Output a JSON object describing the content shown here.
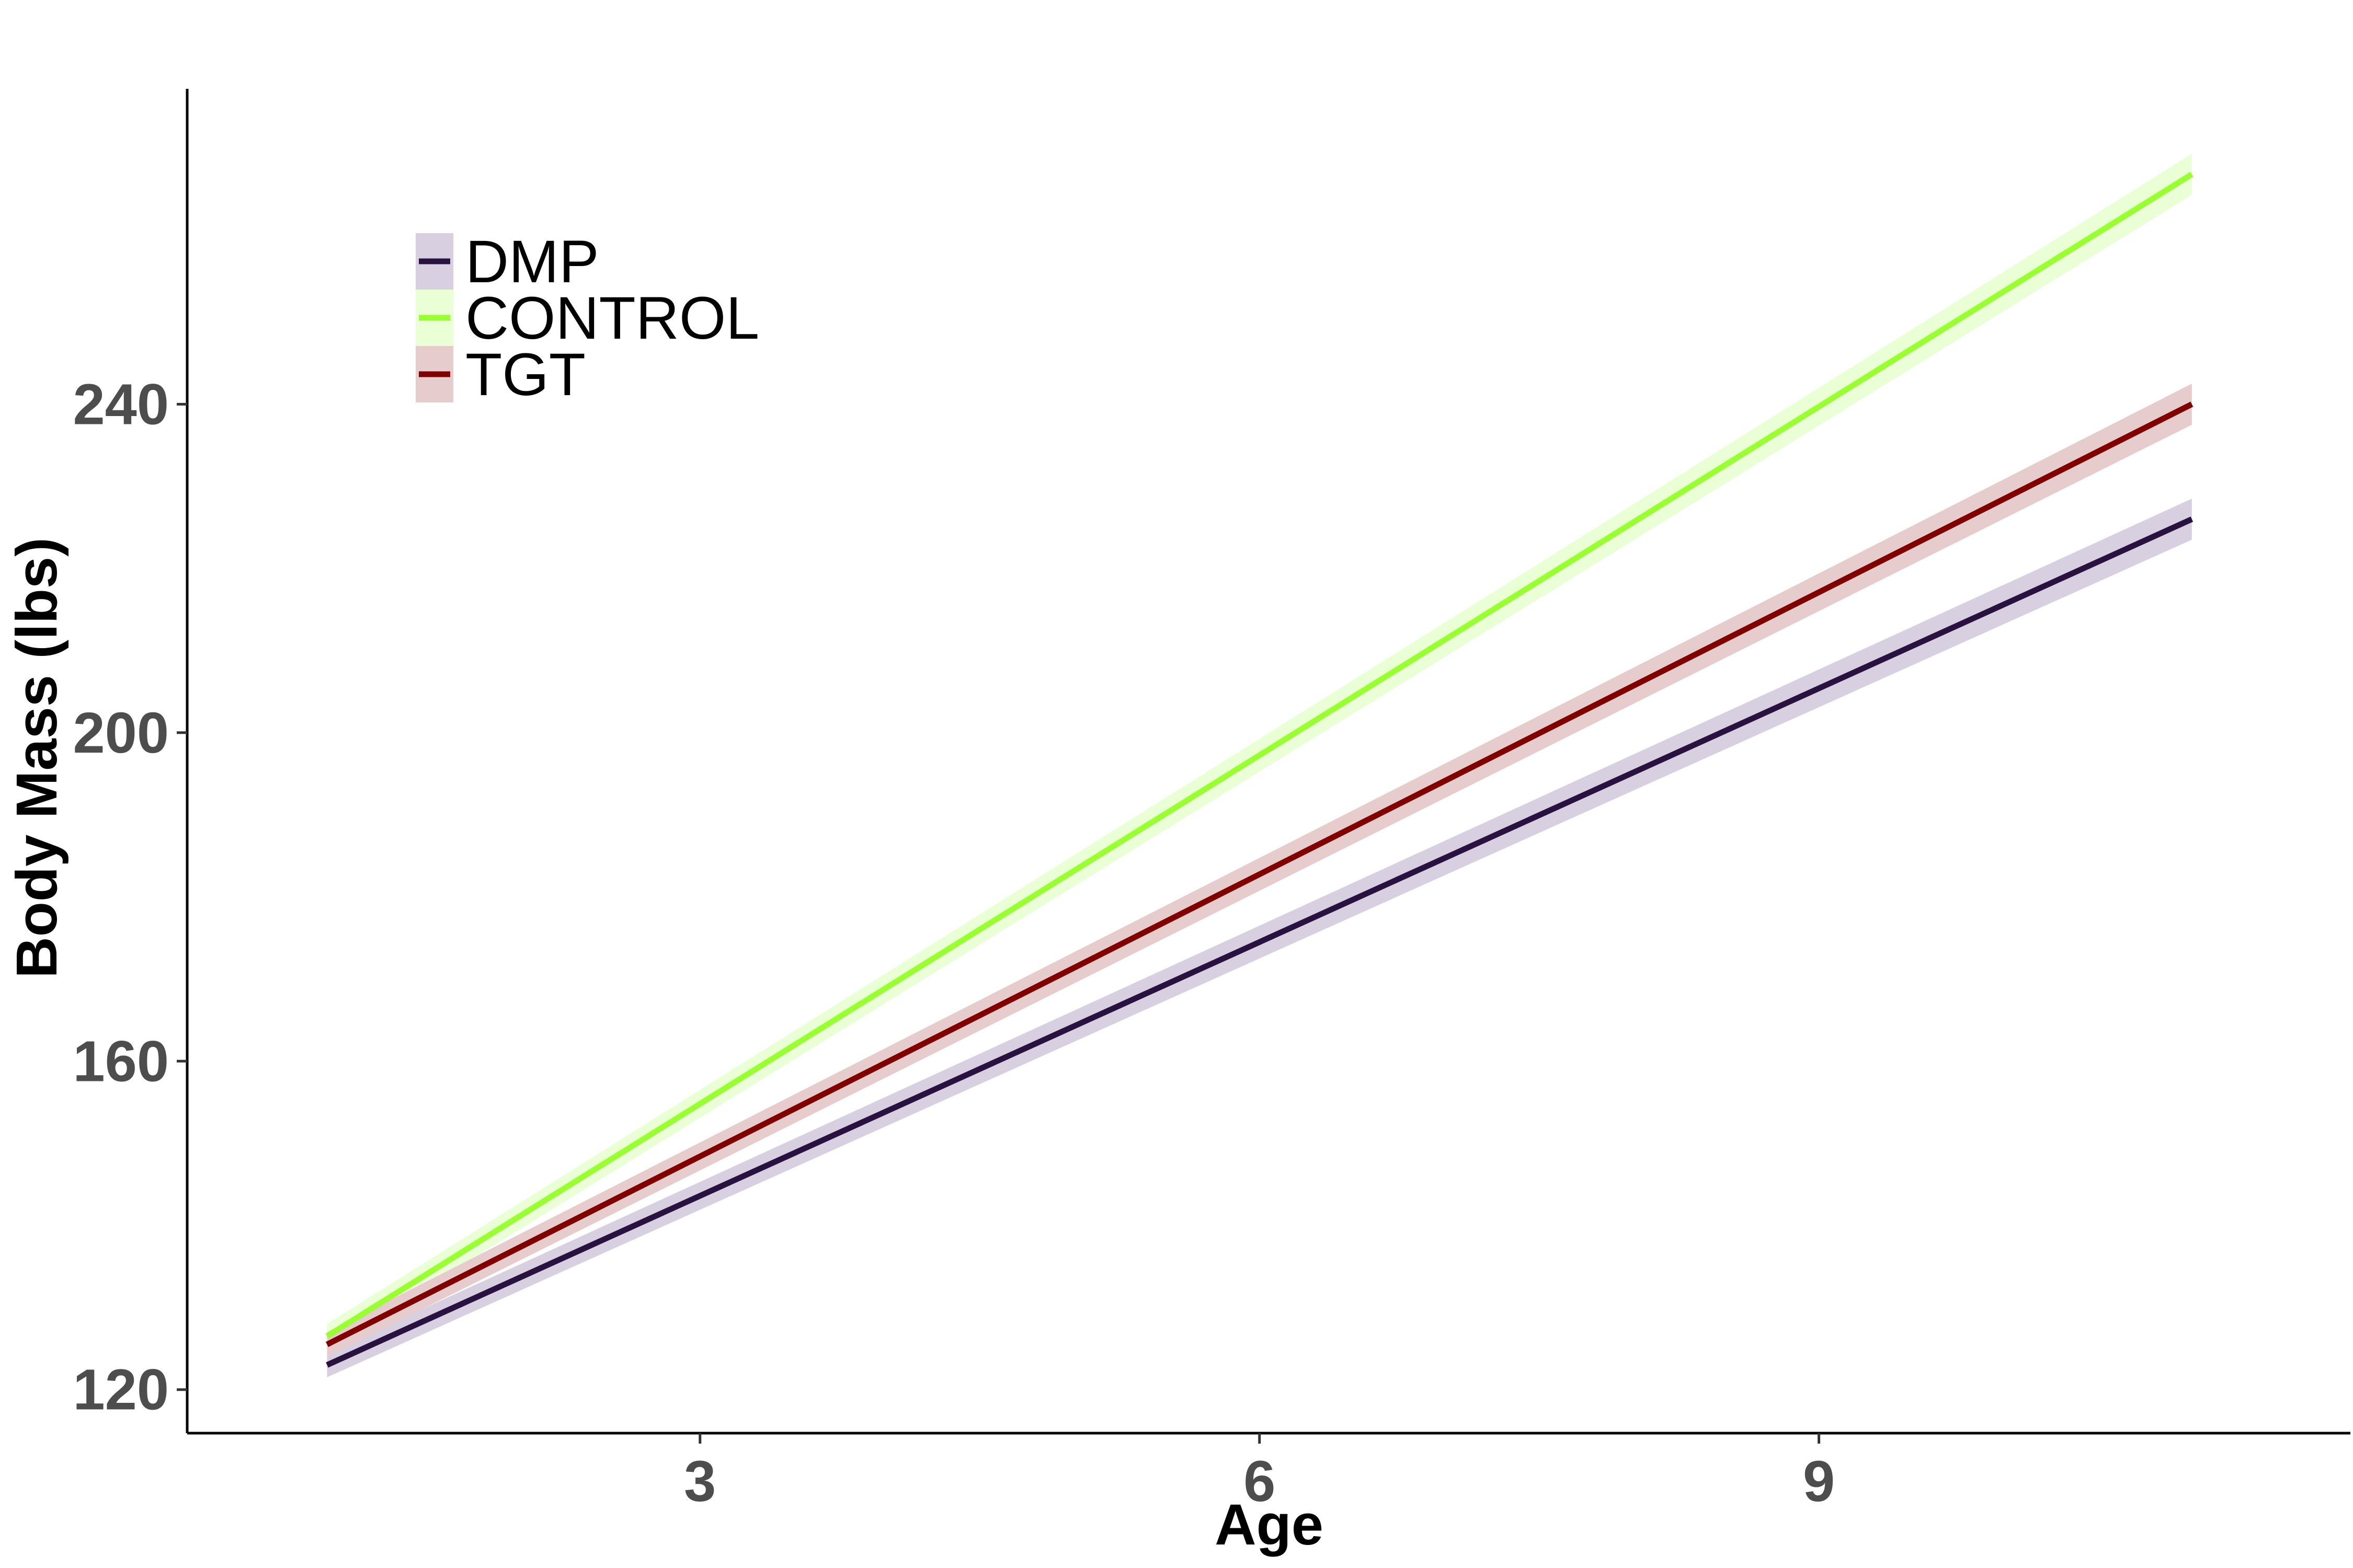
{
  "chart_data": {
    "type": "line",
    "title": "",
    "xlabel": "Age",
    "ylabel": "Body Mass (lbs)",
    "xlim": [
      0.25,
      11.85
    ],
    "ylim": [
      114.7,
      278.4
    ],
    "x_ticks": [
      3,
      6,
      9
    ],
    "y_ticks": [
      120,
      160,
      200,
      240
    ],
    "grid": false,
    "legend_position": "top-left",
    "series": [
      {
        "name": "DMP",
        "color": "#2a1240",
        "band_color": "#d8d0e0",
        "x": [
          1,
          11
        ],
        "values": [
          123,
          226
        ],
        "band_halfwidth": [
          1.5,
          2.5
        ]
      },
      {
        "name": "CONTROL",
        "color": "#99ff33",
        "band_color": "#eaffd6",
        "x": [
          1,
          11
        ],
        "values": [
          126.5,
          268
        ],
        "band_halfwidth": [
          1.5,
          2.5
        ]
      },
      {
        "name": "TGT",
        "color": "#800000",
        "band_color": "#e6cccc",
        "x": [
          1,
          11
        ],
        "values": [
          125.5,
          240
        ],
        "band_halfwidth": [
          1.5,
          2.5
        ]
      }
    ]
  }
}
